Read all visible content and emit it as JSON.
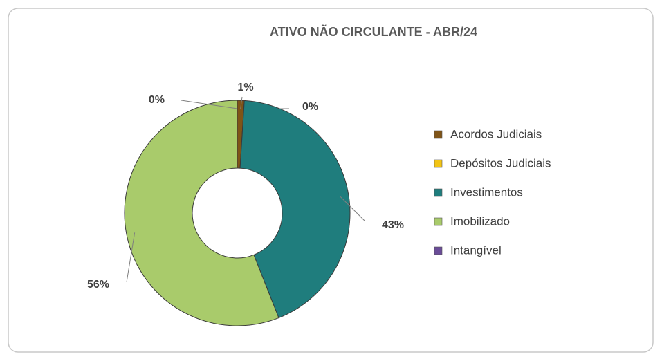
{
  "chart_data": {
    "type": "donut",
    "title": "ATIVO NÃO CIRCULANTE - ABR/24",
    "categories": [
      "Acordos Judiciais",
      "Depósitos Judiciais",
      "Investimentos",
      "Imobilizado",
      "Intangível"
    ],
    "values": [
      1,
      0,
      43,
      56,
      0
    ],
    "value_labels": [
      "1%",
      "0%",
      "43%",
      "56%",
      "0%"
    ],
    "colors": [
      "#7f5417",
      "#f2c414",
      "#1f7d7d",
      "#a9cb6b",
      "#6a4c98"
    ],
    "legend": "right"
  }
}
